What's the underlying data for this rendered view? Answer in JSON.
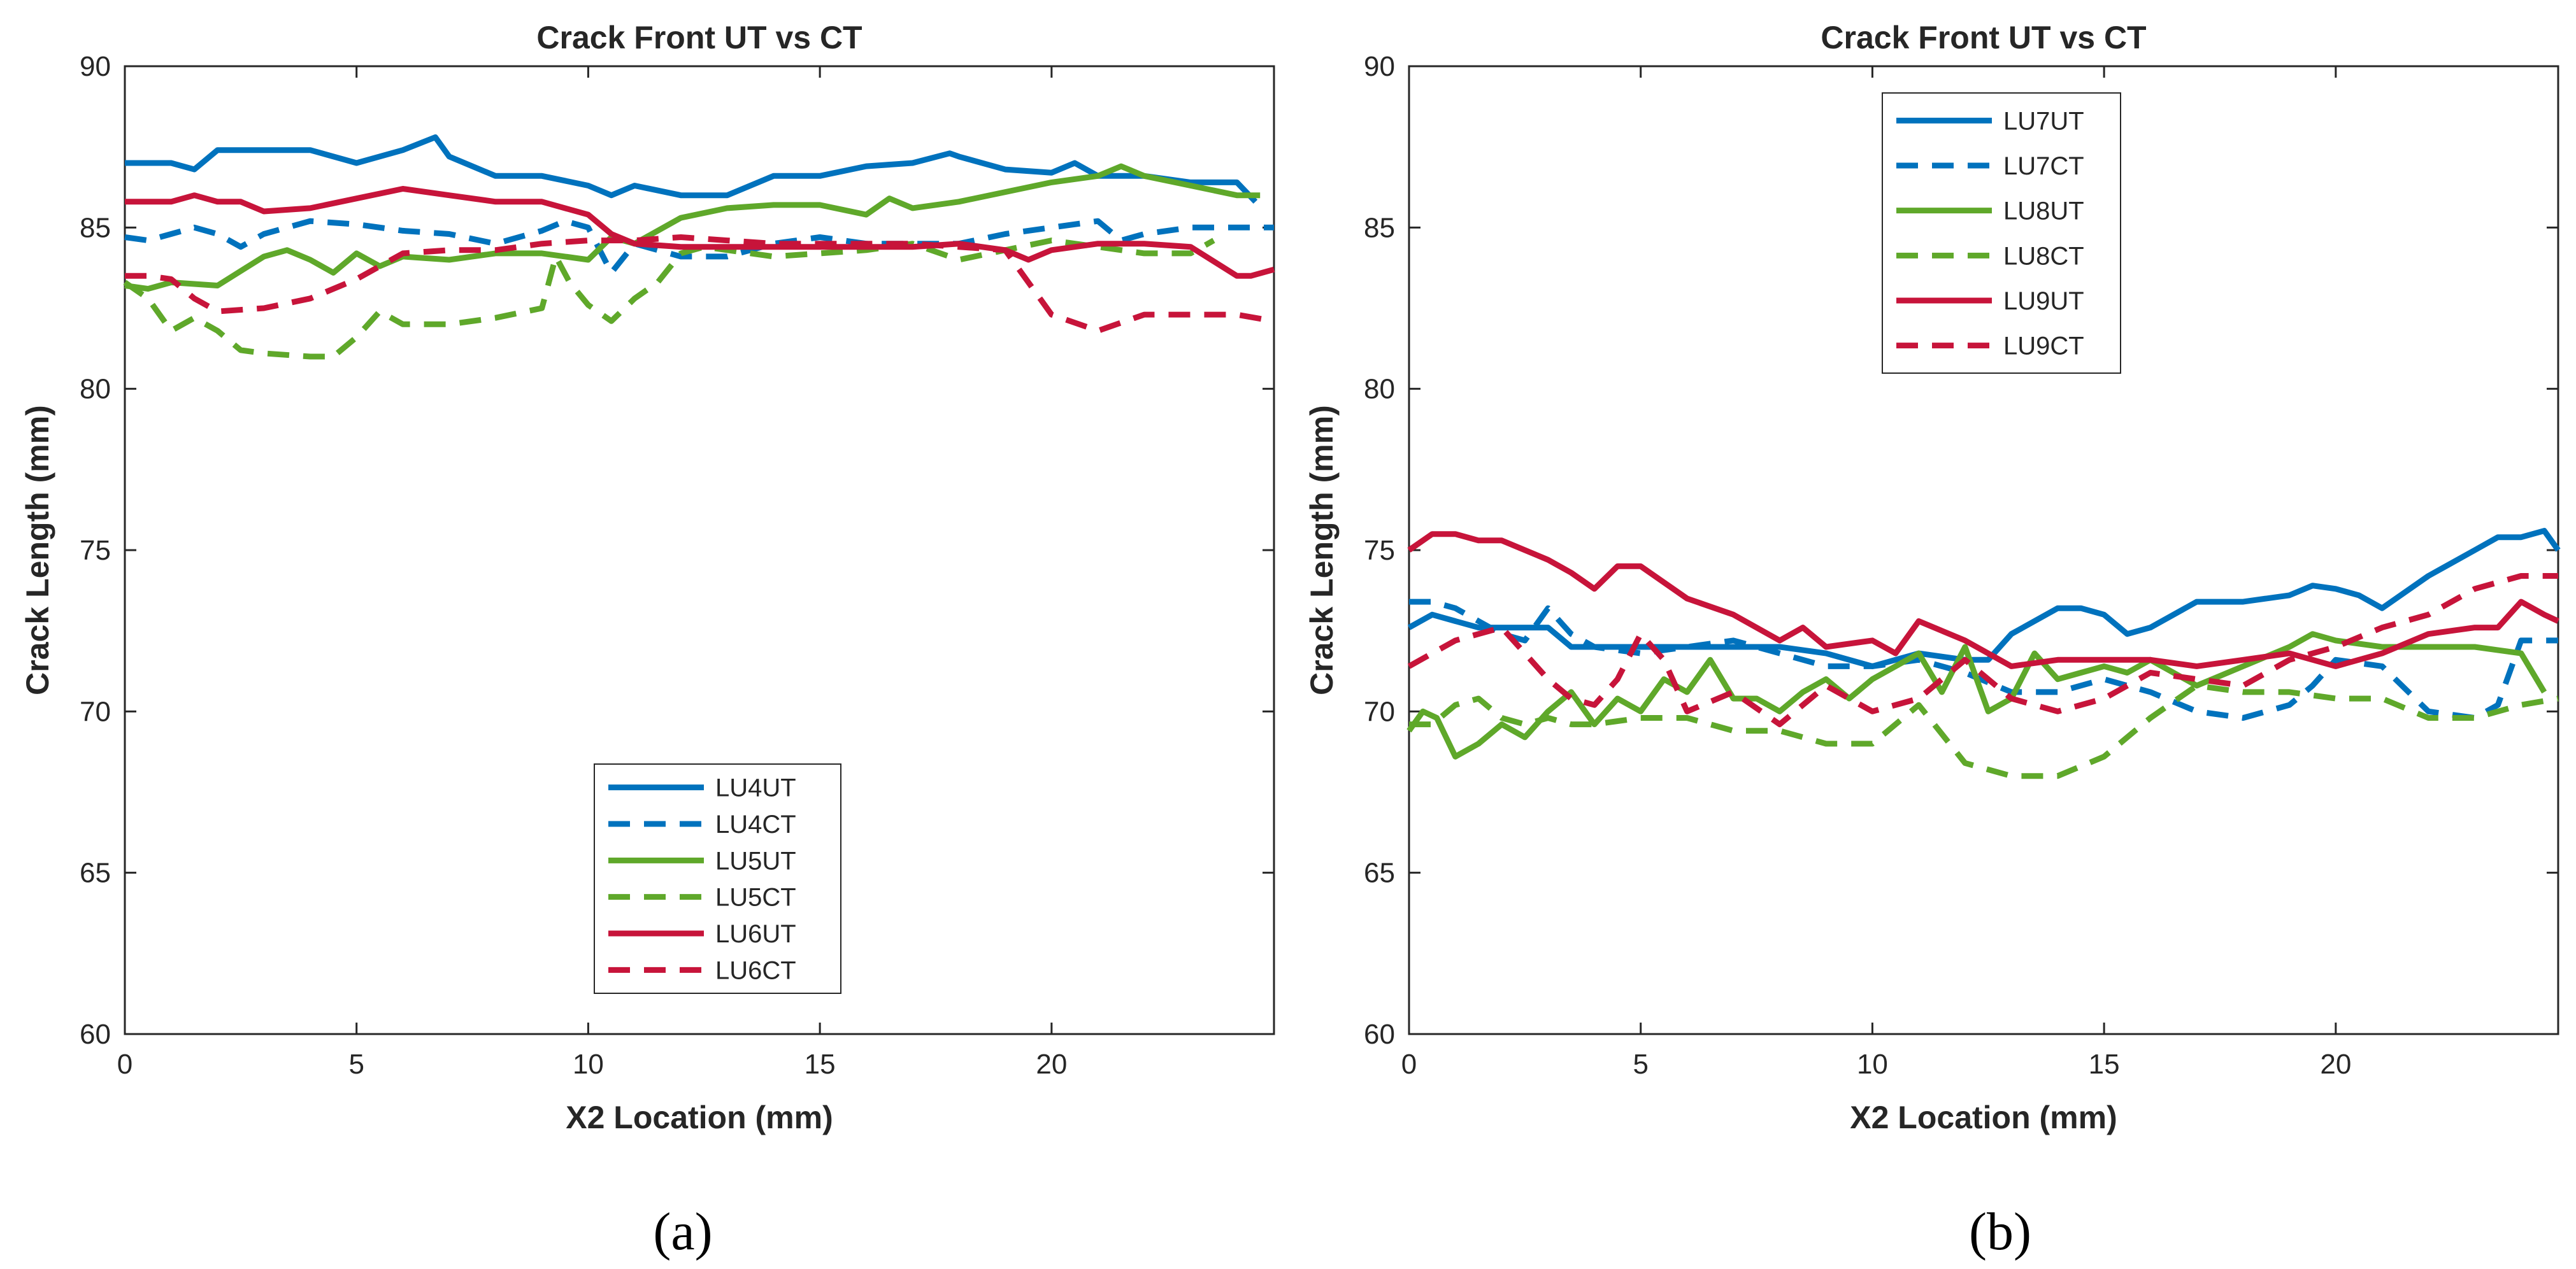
{
  "chart_data": [
    {
      "type": "line",
      "title": "Crack Front UT vs CT",
      "xlabel": "X2 Location (mm)",
      "ylabel": "Crack Length (mm)",
      "xlim": [
        0,
        24.8
      ],
      "ylim": [
        60,
        90
      ],
      "xticks": [
        0,
        5,
        10,
        15,
        20
      ],
      "yticks": [
        60,
        65,
        70,
        75,
        80,
        85,
        90
      ],
      "legend_position": "bottom-center",
      "caption": "(a)",
      "series": [
        {
          "name": "LU4UT",
          "color": "#0072BD",
          "dash": "solid",
          "x": [
            0,
            1,
            1.5,
            2,
            4,
            5,
            6,
            6.7,
            7,
            8,
            9,
            10,
            10.5,
            11,
            12,
            13,
            14,
            15,
            16,
            17,
            17.8,
            18,
            19,
            20,
            20.5,
            21,
            22,
            23,
            24,
            24.4
          ],
          "y": [
            87,
            87,
            86.8,
            87.4,
            87.4,
            87,
            87.4,
            87.8,
            87.2,
            86.6,
            86.6,
            86.3,
            86,
            86.3,
            86,
            86,
            86.6,
            86.6,
            86.9,
            87,
            87.3,
            87.2,
            86.8,
            86.7,
            87,
            86.6,
            86.6,
            86.4,
            86.4,
            85.8
          ]
        },
        {
          "name": "LU4CT",
          "color": "#0072BD",
          "dash": "dashed",
          "x": [
            0,
            0.5,
            1,
            1.5,
            2,
            2.5,
            3,
            4,
            5,
            6,
            7,
            8,
            9,
            9.5,
            10,
            10.5,
            11,
            12,
            13,
            14,
            15,
            16,
            17,
            18,
            19,
            20,
            21,
            21.5,
            22,
            23,
            24,
            24.8
          ],
          "y": [
            84.7,
            84.6,
            84.8,
            85,
            84.8,
            84.4,
            84.8,
            85.2,
            85.1,
            84.9,
            84.8,
            84.5,
            84.9,
            85.2,
            85,
            83.6,
            84.5,
            84.1,
            84.1,
            84.5,
            84.7,
            84.5,
            84.5,
            84.5,
            84.8,
            85,
            85.2,
            84.6,
            84.8,
            85,
            85,
            85
          ]
        },
        {
          "name": "LU5UT",
          "color": "#5FA82A",
          "dash": "solid",
          "x": [
            0,
            0.5,
            1,
            2,
            3,
            3.5,
            4,
            4.5,
            5,
            5.5,
            6,
            7,
            8,
            9,
            10,
            10.5,
            11,
            12,
            13,
            14,
            15,
            16,
            16.5,
            17,
            18,
            19,
            20,
            21,
            21.5,
            22,
            23,
            24,
            24.5
          ],
          "y": [
            83.2,
            83.1,
            83.3,
            83.2,
            84.1,
            84.3,
            84,
            83.6,
            84.2,
            83.8,
            84.1,
            84,
            84.2,
            84.2,
            84,
            84.7,
            84.5,
            85.3,
            85.6,
            85.7,
            85.7,
            85.4,
            85.9,
            85.6,
            85.8,
            86.1,
            86.4,
            86.6,
            86.9,
            86.6,
            86.3,
            86,
            86
          ]
        },
        {
          "name": "LU5CT",
          "color": "#5FA82A",
          "dash": "dashed",
          "x": [
            0,
            0.5,
            1,
            1.5,
            2,
            2.5,
            3,
            4,
            4.5,
            5,
            5.5,
            6,
            7,
            8,
            9,
            9.3,
            9.6,
            10,
            10.5,
            11,
            11.5,
            12,
            12.5,
            13,
            14,
            15,
            16,
            17,
            18,
            19,
            20,
            21,
            22,
            23,
            23.5
          ],
          "y": [
            83.3,
            82.8,
            81.8,
            82.2,
            81.8,
            81.2,
            81.1,
            81,
            81,
            81.6,
            82.4,
            82,
            82,
            82.2,
            82.5,
            84.1,
            83.3,
            82.6,
            82.1,
            82.8,
            83.3,
            84.2,
            84.4,
            84.3,
            84.1,
            84.2,
            84.3,
            84.5,
            84,
            84.3,
            84.6,
            84.4,
            84.2,
            84.2,
            84.6
          ]
        },
        {
          "name": "LU6UT",
          "color": "#C7143A",
          "dash": "solid",
          "x": [
            0,
            1,
            1.5,
            2,
            2.5,
            3,
            4,
            5,
            6,
            7,
            8,
            9,
            10,
            10.5,
            11,
            12,
            13,
            14,
            15,
            16,
            17,
            18,
            19,
            19.5,
            20,
            21,
            22,
            23,
            24,
            24.3,
            24.8
          ],
          "y": [
            85.8,
            85.8,
            86,
            85.8,
            85.8,
            85.5,
            85.6,
            85.9,
            86.2,
            86,
            85.8,
            85.8,
            85.4,
            84.8,
            84.5,
            84.4,
            84.4,
            84.4,
            84.4,
            84.4,
            84.4,
            84.5,
            84.3,
            84,
            84.3,
            84.5,
            84.5,
            84.4,
            83.5,
            83.5,
            83.7
          ]
        },
        {
          "name": "LU6CT",
          "color": "#C7143A",
          "dash": "dashed",
          "x": [
            0,
            0.5,
            1,
            1.5,
            2,
            3,
            4,
            5,
            6,
            7,
            8,
            9,
            10,
            11,
            12,
            13,
            14,
            15,
            16,
            17,
            18,
            19,
            20,
            21,
            22,
            23,
            24,
            24.8
          ],
          "y": [
            83.5,
            83.5,
            83.4,
            82.8,
            82.4,
            82.5,
            82.8,
            83.4,
            84.2,
            84.3,
            84.3,
            84.5,
            84.6,
            84.6,
            84.7,
            84.6,
            84.5,
            84.5,
            84.5,
            84.5,
            84.4,
            84.3,
            82.3,
            81.8,
            82.3,
            82.3,
            82.3,
            82.1
          ]
        }
      ]
    },
    {
      "type": "line",
      "title": "Crack Front UT vs CT",
      "xlabel": "X2 Location (mm)",
      "ylabel": "Crack Length (mm)",
      "xlim": [
        0,
        24.8
      ],
      "ylim": [
        60,
        90
      ],
      "xticks": [
        0,
        5,
        10,
        15,
        20
      ],
      "yticks": [
        60,
        65,
        70,
        75,
        80,
        85,
        90
      ],
      "legend_position": "top-center",
      "caption": "(b)",
      "series": [
        {
          "name": "LU7UT",
          "color": "#0072BD",
          "dash": "solid",
          "x": [
            0,
            0.5,
            1,
            1.5,
            2,
            3,
            3.5,
            4,
            5,
            6,
            7,
            8,
            9,
            10,
            11,
            12,
            12.5,
            13,
            14,
            14.5,
            15,
            15.5,
            16,
            17,
            18,
            19,
            19.5,
            20,
            20.5,
            21,
            22,
            23,
            23.5,
            24,
            24.5,
            24.8
          ],
          "y": [
            72.6,
            73,
            72.8,
            72.6,
            72.6,
            72.6,
            72,
            72,
            72,
            72,
            72,
            72,
            71.8,
            71.4,
            71.8,
            71.6,
            71.6,
            72.4,
            73.2,
            73.2,
            73,
            72.4,
            72.6,
            73.4,
            73.4,
            73.6,
            73.9,
            73.8,
            73.6,
            73.2,
            74.2,
            75,
            75.4,
            75.4,
            75.6,
            75
          ]
        },
        {
          "name": "LU7CT",
          "color": "#0072BD",
          "dash": "dashed",
          "x": [
            0,
            0.5,
            1,
            1.5,
            2,
            2.5,
            3,
            3.5,
            4,
            5,
            6,
            7,
            8,
            9,
            10,
            11,
            12,
            13,
            14,
            15,
            16,
            17,
            18,
            19,
            19.5,
            20,
            21,
            22,
            23,
            23.5,
            24,
            24.8
          ],
          "y": [
            73.4,
            73.4,
            73.2,
            72.8,
            72.4,
            72.2,
            73.2,
            72.4,
            72,
            71.8,
            72,
            72.2,
            71.8,
            71.4,
            71.4,
            71.6,
            71.2,
            70.6,
            70.6,
            71,
            70.6,
            70,
            69.8,
            70.2,
            70.8,
            71.6,
            71.4,
            70,
            69.8,
            70.2,
            72.2,
            72.2
          ]
        },
        {
          "name": "LU8UT",
          "color": "#5FA82A",
          "dash": "solid",
          "x": [
            0,
            0.3,
            0.6,
            1,
            1.5,
            2,
            2.5,
            3,
            3.5,
            4,
            4.5,
            5,
            5.5,
            6,
            6.5,
            7,
            7.5,
            8,
            8.5,
            9,
            9.5,
            10,
            10.5,
            11,
            11.5,
            12,
            12.5,
            13,
            13.5,
            14,
            14.5,
            15,
            15.5,
            16,
            17,
            18,
            19,
            19.5,
            20,
            21,
            22,
            23,
            24,
            24.5
          ],
          "y": [
            69.4,
            70,
            69.8,
            68.6,
            69,
            69.6,
            69.2,
            70,
            70.6,
            69.6,
            70.4,
            70,
            71,
            70.6,
            71.6,
            70.4,
            70.4,
            70,
            70.6,
            71,
            70.4,
            71,
            71.4,
            71.8,
            70.6,
            72,
            70,
            70.4,
            71.8,
            71,
            71.2,
            71.4,
            71.2,
            71.6,
            70.8,
            71.4,
            72,
            72.4,
            72.2,
            72,
            72,
            72,
            71.8,
            70.6
          ]
        },
        {
          "name": "LU8CT",
          "color": "#5FA82A",
          "dash": "dashed",
          "x": [
            0,
            0.5,
            1,
            1.5,
            2,
            2.5,
            3,
            3.5,
            4,
            5,
            6,
            7,
            8,
            9,
            10,
            11,
            12,
            13,
            14,
            15,
            16,
            17,
            18,
            19,
            20,
            21,
            22,
            23,
            24,
            24.8
          ],
          "y": [
            69.6,
            69.6,
            70.2,
            70.4,
            69.8,
            69.6,
            69.8,
            69.6,
            69.6,
            69.8,
            69.8,
            69.4,
            69.4,
            69,
            69,
            70.2,
            68.4,
            68,
            68,
            68.6,
            69.8,
            70.8,
            70.6,
            70.6,
            70.4,
            70.4,
            69.8,
            69.8,
            70.2,
            70.4
          ]
        },
        {
          "name": "LU9UT",
          "color": "#C7143A",
          "dash": "solid",
          "x": [
            0,
            0.5,
            1,
            1.5,
            2,
            3,
            3.5,
            4,
            4.5,
            5,
            6,
            7,
            8,
            8.5,
            9,
            10,
            10.5,
            11,
            12,
            13,
            14,
            15,
            16,
            17,
            18,
            19,
            20,
            21,
            22,
            23,
            23.5,
            24,
            24.5,
            24.8
          ],
          "y": [
            75,
            75.5,
            75.5,
            75.3,
            75.3,
            74.7,
            74.3,
            73.8,
            74.5,
            74.5,
            73.5,
            73,
            72.2,
            72.6,
            72,
            72.2,
            71.8,
            72.8,
            72.2,
            71.4,
            71.6,
            71.6,
            71.6,
            71.4,
            71.6,
            71.8,
            71.4,
            71.8,
            72.4,
            72.6,
            72.6,
            73.4,
            73,
            72.8
          ]
        },
        {
          "name": "LU9CT",
          "color": "#C7143A",
          "dash": "dashed",
          "x": [
            0,
            0.5,
            1,
            1.5,
            2,
            2.5,
            3,
            3.5,
            4,
            4.5,
            5,
            5.5,
            6,
            7,
            8,
            8.5,
            9,
            10,
            11,
            12,
            13,
            14,
            15,
            16,
            17,
            18,
            19,
            20,
            21,
            22,
            23,
            24,
            24.8
          ],
          "y": [
            71.4,
            71.8,
            72.2,
            72.4,
            72.6,
            71.8,
            71,
            70.4,
            70.2,
            71,
            72.4,
            71.6,
            70,
            70.6,
            69.6,
            70.2,
            70.8,
            70,
            70.4,
            71.6,
            70.4,
            70,
            70.4,
            71.2,
            71,
            70.8,
            71.6,
            72,
            72.6,
            73,
            73.8,
            74.2,
            74.2
          ]
        }
      ]
    }
  ]
}
